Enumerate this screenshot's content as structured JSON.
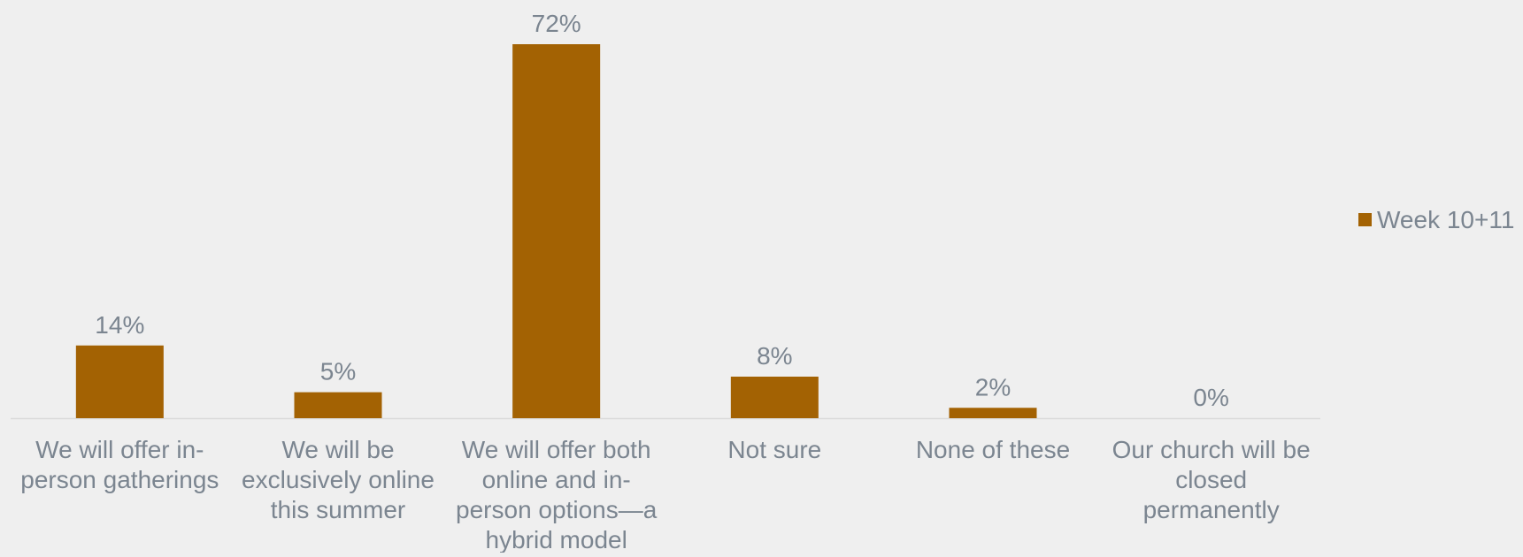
{
  "chart_data": {
    "type": "bar",
    "categories": [
      [
        "We will offer in-",
        "person gatherings"
      ],
      [
        "We will be",
        "exclusively online",
        "this summer"
      ],
      [
        "We will offer both",
        "online and in-",
        "person options—a",
        "hybrid model"
      ],
      [
        "Not sure"
      ],
      [
        "None of these"
      ],
      [
        "Our church will be",
        "closed",
        "permanently"
      ]
    ],
    "series": [
      {
        "name": "Week 10+11",
        "values": [
          14,
          5,
          72,
          8,
          2,
          0
        ],
        "labels": [
          "14%",
          "5%",
          "72%",
          "8%",
          "2%",
          "0%"
        ]
      }
    ],
    "ylim": [
      0,
      72
    ],
    "grid": false,
    "legend": "right",
    "colors": {
      "bar": "#a36203",
      "text": "#7b8590",
      "axis": "#d9d9d9",
      "background": "#efefef"
    }
  }
}
